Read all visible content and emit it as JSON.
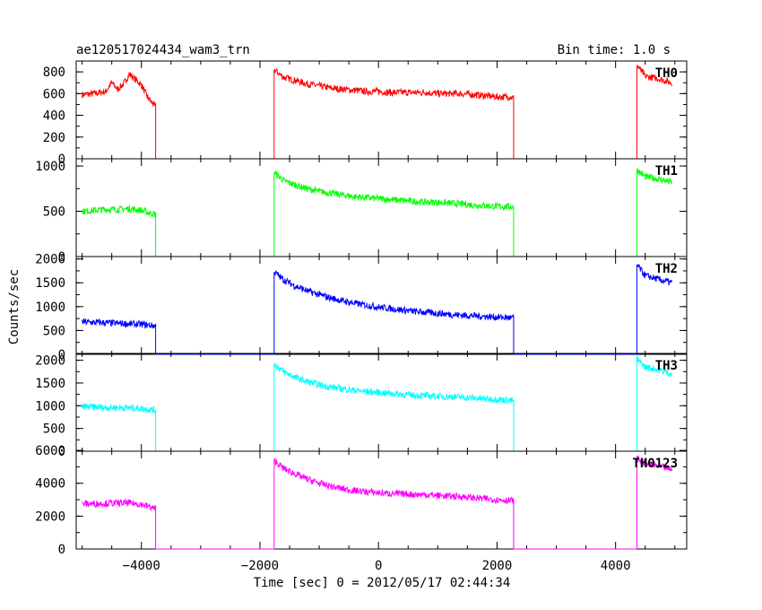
{
  "chart_data": {
    "type": "line",
    "title": "ae120517024434_wam3_trn",
    "subtitle": "Bin time: 1.0 s",
    "xlabel": "Time [sec] 0 = 2012/05/17 02:44:34",
    "ylabel": "Counts/sec",
    "xlim": [
      -5100,
      5200
    ],
    "x_ticks": [
      -4000,
      -2000,
      0,
      2000,
      4000
    ],
    "gaps": [
      [
        -3760,
        -1760
      ],
      [
        2280,
        4360
      ]
    ],
    "panels": [
      {
        "name": "TH0",
        "color": "#ff0000",
        "ylim": [
          0,
          900
        ],
        "y_ticks": [
          0,
          200,
          400,
          600,
          800
        ],
        "x": [
          -5000,
          -4800,
          -4600,
          -4500,
          -4400,
          -4300,
          -4200,
          -4000,
          -3900,
          -3800,
          -3760,
          -1760,
          -1600,
          -1400,
          -1200,
          -1000,
          -800,
          -600,
          -400,
          -200,
          0,
          200,
          400,
          600,
          800,
          1000,
          1200,
          1400,
          1600,
          1800,
          2000,
          2200,
          2280,
          4360,
          4500,
          4700,
          4950
        ],
        "y": [
          590,
          600,
          620,
          700,
          640,
          690,
          780,
          680,
          570,
          500,
          480,
          820,
          750,
          720,
          690,
          670,
          650,
          640,
          630,
          620,
          620,
          610,
          610,
          610,
          610,
          600,
          600,
          600,
          590,
          580,
          570,
          570,
          560,
          860,
          760,
          740,
          700
        ]
      },
      {
        "name": "TH1",
        "color": "#00ff00",
        "ylim": [
          0,
          1080
        ],
        "y_ticks": [
          0,
          500,
          1000
        ],
        "x": [
          -5000,
          -4800,
          -4600,
          -4400,
          -4200,
          -4000,
          -3800,
          -3760,
          -1760,
          -1600,
          -1400,
          -1200,
          -1000,
          -800,
          -600,
          -400,
          -200,
          0,
          200,
          400,
          600,
          800,
          1000,
          1200,
          1400,
          1600,
          1800,
          2000,
          2200,
          2280,
          4360,
          4500,
          4700,
          4950
        ],
        "y": [
          500,
          510,
          520,
          520,
          530,
          510,
          470,
          460,
          930,
          840,
          790,
          750,
          720,
          700,
          680,
          660,
          650,
          640,
          630,
          620,
          610,
          600,
          600,
          590,
          580,
          570,
          560,
          555,
          550,
          545,
          960,
          880,
          860,
          820
        ]
      },
      {
        "name": "TH2",
        "color": "#0000ff",
        "ylim": [
          0,
          2050
        ],
        "y_ticks": [
          0,
          500,
          1000,
          1500,
          2000
        ],
        "x": [
          -5000,
          -4800,
          -4600,
          -4400,
          -4200,
          -4000,
          -3800,
          -3760,
          -1760,
          -1600,
          -1400,
          -1200,
          -1000,
          -800,
          -600,
          -400,
          -200,
          0,
          200,
          400,
          600,
          800,
          1000,
          1200,
          1400,
          1600,
          1800,
          2000,
          2200,
          2280,
          4360,
          4500,
          4700,
          4950
        ],
        "y": [
          680,
          670,
          660,
          650,
          640,
          630,
          600,
          590,
          1730,
          1560,
          1430,
          1330,
          1250,
          1180,
          1120,
          1070,
          1030,
          990,
          960,
          930,
          900,
          880,
          860,
          840,
          820,
          810,
          790,
          780,
          770,
          760,
          1880,
          1650,
          1580,
          1500
        ]
      },
      {
        "name": "TH3",
        "color": "#00ffff",
        "ylim": [
          0,
          2150
        ],
        "y_ticks": [
          0,
          500,
          1000,
          1500,
          2000
        ],
        "x": [
          -5000,
          -4800,
          -4600,
          -4400,
          -4200,
          -4000,
          -3800,
          -3760,
          -1760,
          -1600,
          -1400,
          -1200,
          -1000,
          -800,
          -600,
          -400,
          -200,
          0,
          200,
          400,
          600,
          800,
          1000,
          1200,
          1400,
          1600,
          1800,
          2000,
          2200,
          2280,
          4360,
          4500,
          4700,
          4950
        ],
        "y": [
          980,
          970,
          960,
          960,
          950,
          940,
          910,
          900,
          1920,
          1750,
          1620,
          1530,
          1460,
          1410,
          1370,
          1340,
          1310,
          1290,
          1270,
          1250,
          1230,
          1220,
          1210,
          1200,
          1190,
          1170,
          1150,
          1140,
          1120,
          1110,
          2020,
          1850,
          1800,
          1700
        ]
      },
      {
        "name": "TH0123",
        "color": "#ff00ff",
        "ylim": [
          0,
          5950
        ],
        "y_ticks": [
          0,
          2000,
          4000,
          6000
        ],
        "x": [
          -5000,
          -4800,
          -4600,
          -4400,
          -4200,
          -4000,
          -3800,
          -3760,
          -1760,
          -1600,
          -1400,
          -1200,
          -1000,
          -800,
          -600,
          -400,
          -200,
          0,
          200,
          400,
          600,
          800,
          1000,
          1200,
          1400,
          1600,
          1800,
          2000,
          2200,
          2280,
          4360,
          4500,
          4700,
          4950
        ],
        "y": [
          2750,
          2760,
          2780,
          2790,
          2800,
          2720,
          2500,
          2450,
          5400,
          4900,
          4550,
          4250,
          4000,
          3800,
          3650,
          3550,
          3480,
          3420,
          3380,
          3350,
          3320,
          3300,
          3260,
          3220,
          3180,
          3120,
          3060,
          3000,
          2960,
          2930,
          5500,
          5200,
          5050,
          4850
        ]
      }
    ]
  }
}
